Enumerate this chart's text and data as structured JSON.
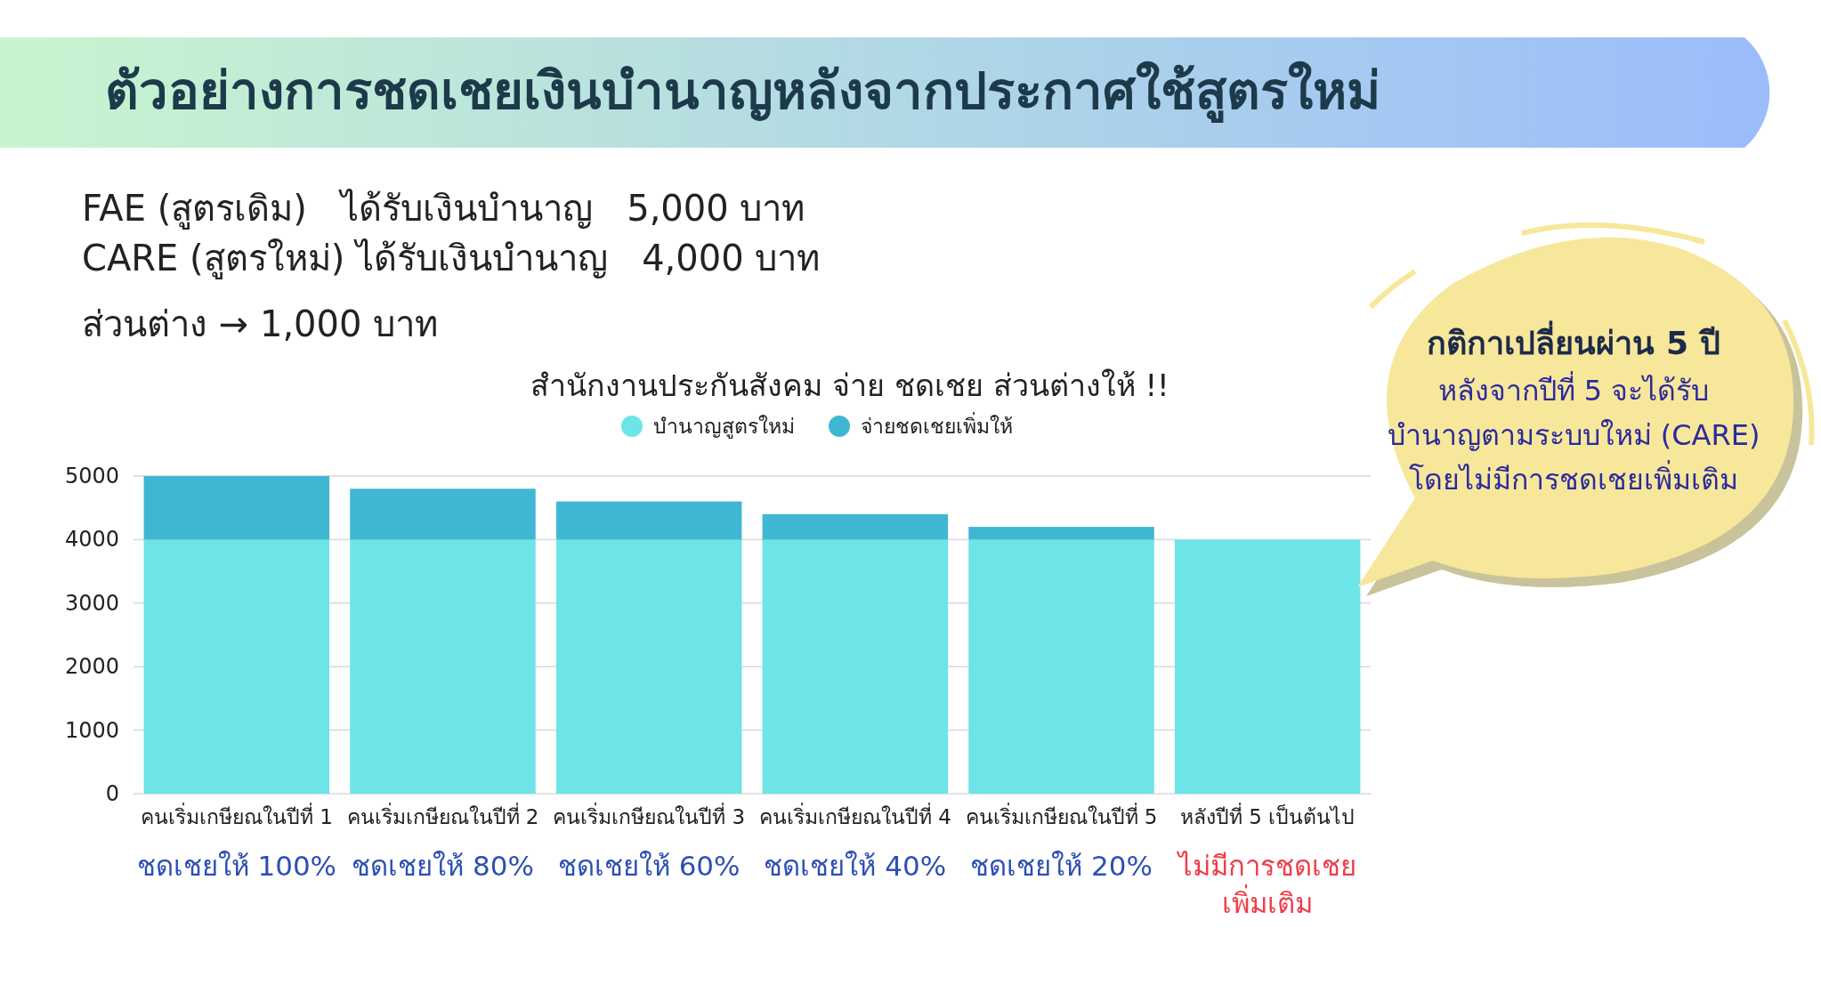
{
  "chart_data": {
    "type": "bar",
    "stacked": true,
    "title": "ตัวอย่างการชดเชยเงินบำนาญหลังจากประกาศใช้สูตรใหม่",
    "subtitle": "สำนักงานประกันสังคม จ่าย ชดเชย ส่วนต่างให้ !!",
    "categories": [
      "คนเริ่มเกษียณในปีที่ 1",
      "คนเริ่มเกษียณในปีที่ 2",
      "คนเริ่มเกษียณในปีที่ 3",
      "คนเริ่มเกษียณในปีที่ 4",
      "คนเริ่มเกษียณในปีที่ 5",
      "หลังปีที่ 5 เป็นต้นไป"
    ],
    "series": [
      {
        "name": "บำนาญสูตรใหม่",
        "color": "#6ce4e8",
        "values": [
          4000,
          4000,
          4000,
          4000,
          4000,
          4000
        ]
      },
      {
        "name": "จ่ายชดเชยเพิ่มให้",
        "color": "#3fb7d3",
        "values": [
          1000,
          800,
          600,
          400,
          200,
          0
        ]
      }
    ],
    "ylim": [
      0,
      5000
    ],
    "yticks": [
      0,
      1000,
      2000,
      3000,
      4000,
      5000
    ],
    "grid": "y",
    "legend": "top",
    "annotations": [
      "FAE (สูตรเดิม)   ได้รับเงินบำนาญ   5,000 บาท",
      "CARE (สูตรใหม่) ได้รับเงินบำนาญ   4,000 บาท",
      "ส่วนต่าง → 1,000 บาท",
      "กติกาเปลี่ยนผ่าน 5 ปี",
      "หลังจากปีที่ 5 จะได้รับ",
      "บำนาญตามระบบใหม่ (CARE)",
      "โดยไม่มีการชดเชยเพิ่มเติม",
      "ชดเชยให้ 100%",
      "ชดเชยให้ 80%",
      "ชดเชยให้ 60%",
      "ชดเชยให้ 40%",
      "ชดเชยให้ 20%",
      "ไม่มีการชดเชย\nเพิ่มเติม"
    ]
  }
}
